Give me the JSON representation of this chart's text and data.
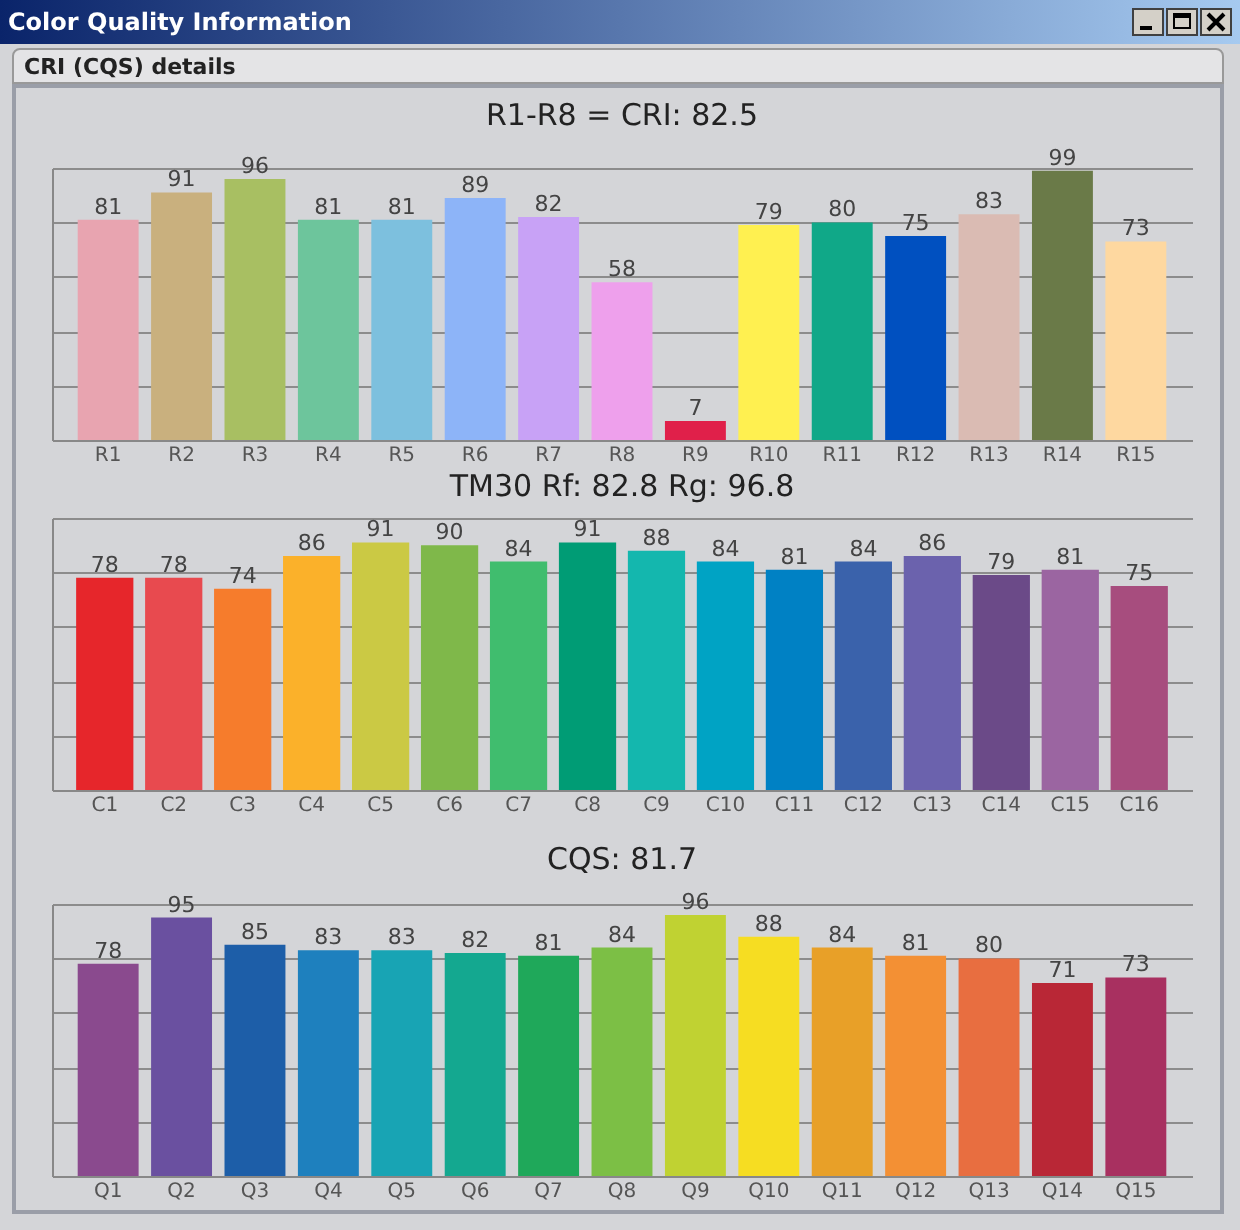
{
  "chart_data": [
    {
      "type": "bar",
      "title": "R1-R8 = CRI: 82.5",
      "annotations": [
        "Color Quality Information",
        "CRI (CQS) details"
      ],
      "categories": [
        "R1",
        "R2",
        "R3",
        "R4",
        "R5",
        "R6",
        "R7",
        "R8",
        "R9",
        "R10",
        "R11",
        "R12",
        "R13",
        "R14",
        "R15"
      ],
      "values": [
        81,
        91,
        96,
        81,
        81,
        89,
        82,
        58,
        7,
        79,
        80,
        75,
        83,
        99,
        73
      ],
      "colors": [
        "#e8a4b0",
        "#c9b07e",
        "#a8bf62",
        "#6dc59c",
        "#7dc0de",
        "#8db4f8",
        "#c8a2f6",
        "#eea0ec",
        "#e0204a",
        "#fff050",
        "#10a888",
        "#0050c0",
        "#dabbb3",
        "#6a7a48",
        "#fed8a0"
      ],
      "ylim": [
        0,
        100
      ],
      "tick_labels": "x",
      "grid": "y",
      "data_labels": true
    },
    {
      "type": "bar",
      "title": "TM30  Rf: 82.8   Rg: 96.8",
      "categories": [
        "C1",
        "C2",
        "C3",
        "C4",
        "C5",
        "C6",
        "C7",
        "C8",
        "C9",
        "C10",
        "C11",
        "C12",
        "C13",
        "C14",
        "C15",
        "C16"
      ],
      "values": [
        78,
        78,
        74,
        86,
        91,
        90,
        84,
        91,
        88,
        84,
        81,
        84,
        86,
        79,
        81,
        75
      ],
      "colors": [
        "#e6262b",
        "#e84a4f",
        "#f67c2c",
        "#fbb12a",
        "#cbc944",
        "#7fb84a",
        "#40bd6e",
        "#009c75",
        "#14b7ae",
        "#00a3c4",
        "#0081c4",
        "#3a62ab",
        "#6b62ad",
        "#6b4a88",
        "#9b65a1",
        "#a74d7e"
      ],
      "ylim": [
        0,
        100
      ],
      "tick_labels": "x",
      "grid": "y",
      "data_labels": true
    },
    {
      "type": "bar",
      "title": "CQS: 81.7",
      "categories": [
        "Q1",
        "Q2",
        "Q3",
        "Q4",
        "Q5",
        "Q6",
        "Q7",
        "Q8",
        "Q9",
        "Q10",
        "Q11",
        "Q12",
        "Q13",
        "Q14",
        "Q15"
      ],
      "values": [
        78,
        95,
        85,
        83,
        83,
        82,
        81,
        84,
        96,
        88,
        84,
        81,
        80,
        71,
        73
      ],
      "colors": [
        "#8a4a8e",
        "#6a50a0",
        "#1d5ea8",
        "#1e80be",
        "#18a4b4",
        "#14a890",
        "#1fa85a",
        "#7cbf45",
        "#c0d232",
        "#f6dd22",
        "#e8a028",
        "#f39034",
        "#e86e40",
        "#b92736",
        "#a83060"
      ],
      "ylim": [
        0,
        100
      ],
      "tick_labels": "x",
      "grid": "y",
      "data_labels": true
    }
  ]
}
